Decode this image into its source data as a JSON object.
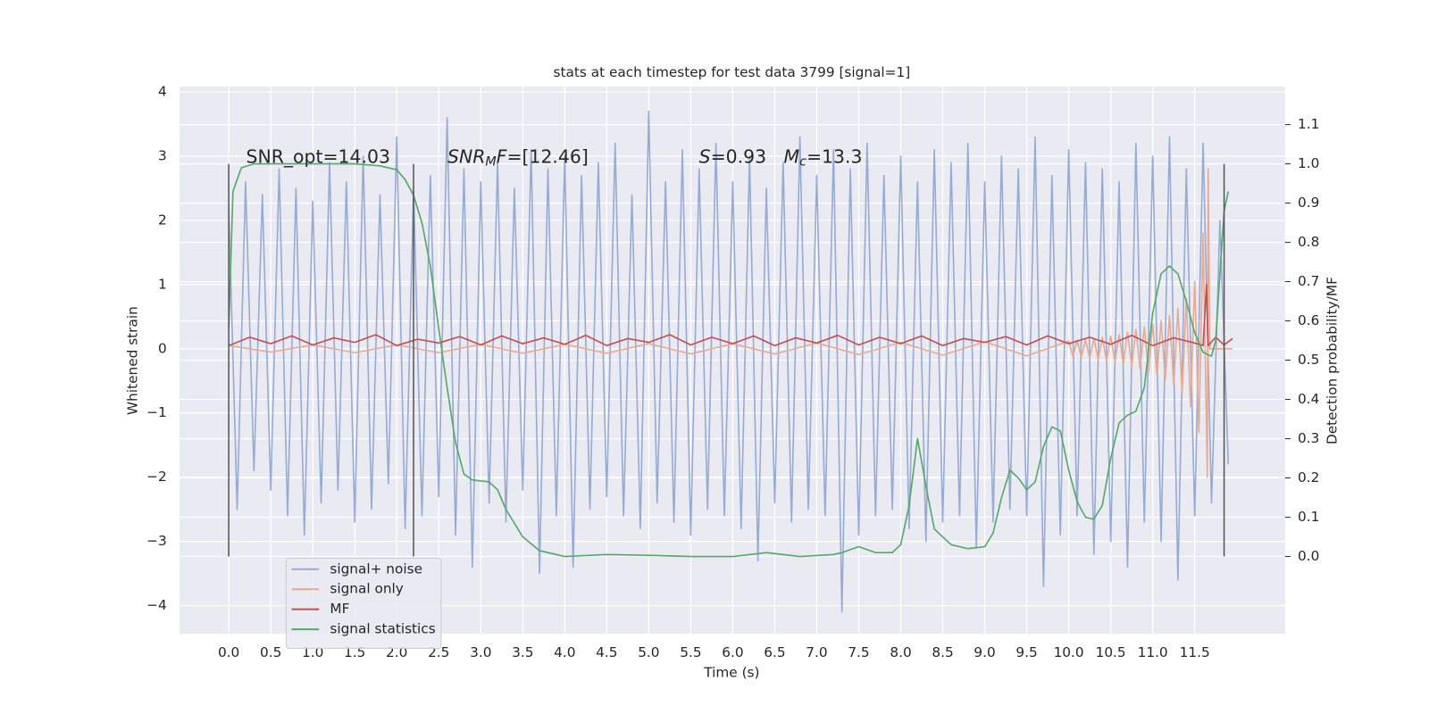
{
  "chart_data": {
    "type": "line",
    "title": "stats at each timestep for test data 3799 [signal=1]",
    "xlabel": "Time (s)",
    "ylabel": "Whitened strain",
    "y2label": "Detection probability/MF",
    "xlim": [
      -0.586,
      12.575
    ],
    "ylim": [
      -4.44,
      4.085
    ],
    "y2lim": [
      -0.197,
      1.197
    ],
    "xticks": [
      {
        "value": 0,
        "label": "0.0"
      },
      0.5,
      {
        "value": 1,
        "label": "1.0"
      },
      1.5,
      {
        "value": 2,
        "label": "2.0"
      },
      2.5,
      {
        "value": 3,
        "label": "3.0"
      },
      3.5,
      {
        "value": 4,
        "label": "4.0"
      },
      4.5,
      {
        "value": 5,
        "label": "5.0"
      },
      5.5,
      {
        "value": 6,
        "label": "6.0"
      },
      6.5,
      {
        "value": 7,
        "label": "7.0"
      },
      7.5,
      {
        "value": 8,
        "label": "8.0"
      },
      8.5,
      {
        "value": 9,
        "label": "9.0"
      },
      9.5,
      {
        "value": 10,
        "label": "10.0"
      },
      10.5,
      {
        "value": 11,
        "label": "11.0"
      },
      11.5
    ],
    "yticks": [
      {
        "value": -4,
        "label": "−4"
      },
      {
        "value": -3,
        "label": "−3"
      },
      {
        "value": -2,
        "label": "−2"
      },
      {
        "value": -1,
        "label": "−1"
      },
      0,
      1,
      2,
      3,
      4
    ],
    "y2ticks": [
      {
        "value": 0,
        "label": "0.0"
      },
      0.1,
      0.2,
      0.3,
      0.4,
      0.5,
      0.6,
      0.7,
      0.8,
      0.9,
      {
        "value": 1,
        "label": "1.0"
      },
      1.1
    ],
    "grid": true,
    "legend": "lower left",
    "markers": [
      0,
      2.2,
      11.85
    ],
    "marker_color": "#555555",
    "annotations": [
      [
        {
          "text": "SNR_opt=14.03",
          "style": "normal"
        }
      ],
      [
        {
          "text": "SNR",
          "style": "italic"
        },
        {
          "text": "M",
          "style": "sub"
        },
        {
          "text": "F",
          "style": "italic"
        },
        {
          "text": "=[12.46]",
          "style": "normal"
        }
      ],
      [
        {
          "text": "S",
          "style": "italic"
        },
        {
          "text": "=0.93   ",
          "style": "normal"
        },
        {
          "text": "M",
          "style": "italic"
        },
        {
          "text": "c",
          "style": "sub"
        },
        {
          "text": "=13.3",
          "style": "normal"
        }
      ]
    ],
    "series": [
      {
        "name": "signal+ noise",
        "color": "#98abd3",
        "x": [
          0,
          0.1,
          0.2,
          0.3,
          0.4,
          0.5,
          0.6,
          0.7,
          0.8,
          0.9,
          1,
          1.1,
          1.2,
          1.3,
          1.4,
          1.5,
          1.6,
          1.7,
          1.8,
          1.9,
          2,
          2.1,
          2.2,
          2.3,
          2.4,
          2.5,
          2.6,
          2.7,
          2.8,
          2.9,
          3,
          3.1,
          3.2,
          3.3,
          3.4,
          3.5,
          3.6,
          3.7,
          3.8,
          3.9,
          4,
          4.1,
          4.2,
          4.3,
          4.4,
          4.5,
          4.6,
          4.7,
          4.8,
          4.9,
          5,
          5.1,
          5.2,
          5.3,
          5.4,
          5.5,
          5.6,
          5.7,
          5.8,
          5.9,
          6,
          6.1,
          6.2,
          6.3,
          6.4,
          6.5,
          6.6,
          6.7,
          6.8,
          6.9,
          7,
          7.1,
          7.2,
          7.3,
          7.4,
          7.5,
          7.6,
          7.7,
          7.8,
          7.9,
          8,
          8.1,
          8.2,
          8.3,
          8.4,
          8.5,
          8.6,
          8.7,
          8.8,
          8.9,
          9,
          9.1,
          9.2,
          9.3,
          9.4,
          9.5,
          9.6,
          9.7,
          9.8,
          9.9,
          10,
          10.1,
          10.2,
          10.3,
          10.4,
          10.5,
          10.6,
          10.7,
          10.8,
          10.9,
          11,
          11.1,
          11.2,
          11.3,
          11.4,
          11.5,
          11.6,
          11.7,
          11.8,
          11.9
        ],
        "values": [
          2.2,
          -2.5,
          2.6,
          -1.9,
          2.4,
          -2.2,
          2.8,
          -2.6,
          2.5,
          -2.9,
          2.3,
          -2.4,
          2.9,
          -2.2,
          2.6,
          -2.7,
          3.0,
          -2.5,
          2.4,
          -2.1,
          3.3,
          -2.8,
          2.5,
          -2.6,
          2.7,
          -2.3,
          3.6,
          -2.9,
          2.8,
          -3.4,
          2.6,
          -2.4,
          2.9,
          -2.7,
          2.5,
          -2.2,
          3.1,
          -3.5,
          2.8,
          -2.6,
          3.0,
          -3.4,
          2.7,
          -2.5,
          2.9,
          -2.3,
          3.2,
          -2.6,
          2.4,
          -2.8,
          3.7,
          -2.4,
          2.6,
          -2.7,
          3.1,
          -2.9,
          2.8,
          -2.5,
          3.2,
          -2.6,
          2.6,
          -2.8,
          3.0,
          -3.3,
          2.5,
          -2.4,
          2.9,
          -2.7,
          3.3,
          -2.5,
          2.7,
          -2.6,
          3.1,
          -4.1,
          2.8,
          -2.9,
          3.2,
          -2.6,
          2.7,
          -2.5,
          3.0,
          -2.8,
          2.6,
          -3.0,
          3.1,
          -2.7,
          2.9,
          -2.6,
          3.2,
          -3.1,
          2.6,
          -2.7,
          3.0,
          -2.5,
          2.8,
          -2.6,
          3.3,
          -3.7,
          2.7,
          -2.9,
          3.1,
          -2.6,
          2.9,
          -3.2,
          2.8,
          -3.0,
          2.6,
          -3.4,
          3.2,
          -2.7,
          3.0,
          -3.0,
          3.3,
          -3.6,
          2.8,
          -2.6,
          3.2,
          -2.4,
          2.0,
          -1.8
        ]
      },
      {
        "name": "signal only",
        "color": "#e6ab94",
        "x": [
          0,
          0.5,
          1,
          1.5,
          2,
          2.5,
          3,
          3.5,
          4,
          4.5,
          5,
          5.5,
          6,
          6.5,
          7,
          7.5,
          8,
          8.5,
          9,
          9.5,
          10,
          10.05,
          10.1,
          10.15,
          10.2,
          10.25,
          10.3,
          10.35,
          10.4,
          10.45,
          10.5,
          10.55,
          10.6,
          10.65,
          10.7,
          10.75,
          10.8,
          10.85,
          10.9,
          10.95,
          11,
          11.05,
          11.1,
          11.15,
          11.2,
          11.25,
          11.3,
          11.35,
          11.4,
          11.45,
          11.5,
          11.55,
          11.6,
          11.65,
          11.66,
          11.68,
          11.95
        ],
        "values": [
          0.05,
          -0.05,
          0.06,
          -0.06,
          0.06,
          -0.06,
          0.07,
          -0.07,
          0.07,
          -0.07,
          0.08,
          -0.08,
          0.08,
          -0.08,
          0.09,
          -0.09,
          0.1,
          -0.1,
          0.11,
          -0.11,
          0.12,
          -0.12,
          0.13,
          -0.13,
          0.14,
          -0.15,
          0.16,
          -0.17,
          0.18,
          -0.19,
          0.2,
          -0.21,
          0.22,
          -0.24,
          0.26,
          -0.28,
          0.3,
          -0.32,
          0.34,
          -0.36,
          0.38,
          -0.41,
          0.44,
          -0.48,
          0.52,
          -0.57,
          0.63,
          -0.7,
          0.78,
          -0.9,
          1.05,
          -1.3,
          1.8,
          -2.0,
          2.8,
          0,
          0
        ]
      },
      {
        "name": "MF",
        "color": "#c44e52",
        "x": [
          0,
          0.25,
          0.5,
          0.75,
          1,
          1.25,
          1.5,
          1.75,
          2,
          2.25,
          2.5,
          2.75,
          3,
          3.25,
          3.5,
          3.75,
          4,
          4.25,
          4.5,
          4.75,
          5,
          5.25,
          5.5,
          5.75,
          6,
          6.25,
          6.5,
          6.75,
          7,
          7.25,
          7.5,
          7.75,
          8,
          8.25,
          8.5,
          8.75,
          9,
          9.25,
          9.5,
          9.75,
          10,
          10.25,
          10.5,
          10.75,
          11,
          11.25,
          11.5,
          11.6,
          11.64,
          11.66,
          11.75,
          11.85,
          11.95
        ],
        "values": [
          0.05,
          0.18,
          0.08,
          0.2,
          0.06,
          0.17,
          0.1,
          0.22,
          0.05,
          0.15,
          0.09,
          0.19,
          0.06,
          0.2,
          0.08,
          0.17,
          0.07,
          0.21,
          0.05,
          0.16,
          0.1,
          0.22,
          0.06,
          0.18,
          0.08,
          0.2,
          0.05,
          0.17,
          0.09,
          0.21,
          0.06,
          0.18,
          0.08,
          0.2,
          0.05,
          0.16,
          0.1,
          0.19,
          0.06,
          0.2,
          0.08,
          0.18,
          0.07,
          0.21,
          0.05,
          0.17,
          0.09,
          0.05,
          1.0,
          0.05,
          0.18,
          0.06,
          0.16
        ]
      },
      {
        "name": "signal statistics",
        "color": "#55a868",
        "axis": "y2",
        "x": [
          0,
          0.05,
          0.15,
          0.3,
          1,
          1.5,
          1.8,
          2,
          2.1,
          2.2,
          2.3,
          2.4,
          2.5,
          2.6,
          2.7,
          2.8,
          2.9,
          3.1,
          3.2,
          3.3,
          3.5,
          3.7,
          4,
          4.5,
          5,
          5.5,
          6,
          6.4,
          6.8,
          7.2,
          7.3,
          7.5,
          7.7,
          7.9,
          8,
          8.1,
          8.2,
          8.3,
          8.4,
          8.6,
          8.8,
          9,
          9.1,
          9.2,
          9.3,
          9.4,
          9.5,
          9.6,
          9.7,
          9.8,
          9.9,
          10,
          10.1,
          10.2,
          10.3,
          10.4,
          10.5,
          10.6,
          10.7,
          10.8,
          10.9,
          11,
          11.1,
          11.2,
          11.3,
          11.4,
          11.5,
          11.6,
          11.7,
          11.75,
          11.8,
          11.85,
          11.9
        ],
        "values": [
          0.58,
          0.93,
          0.99,
          1.0,
          1.0,
          1.0,
          0.995,
          0.985,
          0.96,
          0.92,
          0.85,
          0.74,
          0.58,
          0.43,
          0.29,
          0.21,
          0.195,
          0.19,
          0.17,
          0.12,
          0.05,
          0.015,
          0.0,
          0.005,
          0.003,
          0.0,
          0.0,
          0.01,
          0.0,
          0.005,
          0.01,
          0.025,
          0.01,
          0.01,
          0.03,
          0.13,
          0.3,
          0.18,
          0.07,
          0.03,
          0.02,
          0.025,
          0.06,
          0.15,
          0.22,
          0.2,
          0.17,
          0.19,
          0.28,
          0.33,
          0.32,
          0.22,
          0.14,
          0.1,
          0.095,
          0.13,
          0.25,
          0.34,
          0.36,
          0.37,
          0.43,
          0.62,
          0.72,
          0.74,
          0.72,
          0.65,
          0.57,
          0.52,
          0.51,
          0.55,
          0.72,
          0.88,
          0.93
        ]
      }
    ]
  }
}
